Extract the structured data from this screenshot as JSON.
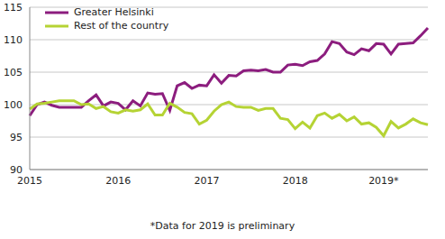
{
  "chart_data": {
    "type": "line",
    "footnote": "*Data for 2019 is preliminary",
    "categories": [
      "2015",
      null,
      null,
      null,
      null,
      null,
      null,
      null,
      null,
      null,
      null,
      null,
      "2016",
      null,
      null,
      null,
      null,
      null,
      null,
      null,
      null,
      null,
      null,
      null,
      "2017",
      null,
      null,
      null,
      null,
      null,
      null,
      null,
      null,
      null,
      null,
      null,
      "2018",
      null,
      null,
      null,
      null,
      null,
      null,
      null,
      null,
      null,
      null,
      null,
      "2019*",
      null,
      null,
      null,
      null,
      null,
      null
    ],
    "series": [
      {
        "name": "Greater Helsinki",
        "color": "#8c1d7e",
        "values": [
          98.3,
          100.0,
          100.4,
          99.9,
          99.6,
          99.6,
          99.6,
          99.6,
          100.6,
          101.5,
          99.8,
          100.4,
          100.2,
          99.2,
          100.6,
          99.8,
          101.8,
          101.6,
          101.7,
          99.1,
          102.9,
          103.4,
          102.5,
          103.0,
          102.9,
          104.6,
          103.3,
          104.5,
          104.4,
          105.2,
          105.3,
          105.2,
          105.4,
          105.0,
          105.0,
          106.1,
          106.2,
          106.0,
          106.6,
          106.8,
          107.8,
          109.7,
          109.4,
          108.1,
          107.7,
          108.6,
          108.3,
          109.4,
          109.3,
          107.8,
          109.3,
          109.4,
          109.5,
          110.6,
          111.8
        ]
      },
      {
        "name": "Rest of the country",
        "color": "#b5d334",
        "values": [
          99.3,
          100.1,
          100.2,
          100.4,
          100.6,
          100.6,
          100.6,
          100.0,
          100.1,
          99.4,
          99.7,
          98.9,
          98.7,
          99.2,
          99.0,
          99.2,
          100.1,
          98.4,
          98.4,
          100.2,
          99.6,
          98.8,
          98.6,
          97.0,
          97.6,
          99.0,
          100.0,
          100.4,
          99.7,
          99.6,
          99.6,
          99.1,
          99.4,
          99.4,
          97.9,
          97.7,
          96.3,
          97.3,
          96.4,
          98.3,
          98.7,
          97.9,
          98.5,
          97.5,
          98.1,
          97.0,
          97.2,
          96.5,
          95.2,
          97.4,
          96.4,
          97.0,
          97.8,
          97.2,
          96.9
        ]
      }
    ],
    "ylim": [
      90,
      115
    ],
    "yticks": [
      90,
      95,
      100,
      105,
      110,
      115
    ],
    "grid": true,
    "legend": "upper left"
  }
}
